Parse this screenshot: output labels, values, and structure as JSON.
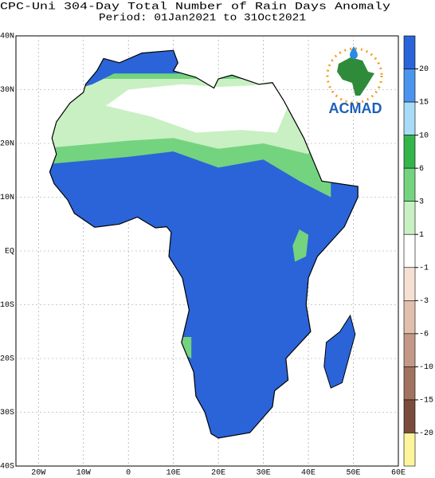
{
  "title": {
    "line1": "CPC-Uni 304-Day Total Number of Rain Days Anomaly",
    "line2": "Period: 01Jan2021 to 31Oct2021"
  },
  "x_axis": {
    "labels": [
      "20W",
      "10W",
      "0",
      "10E",
      "20E",
      "30E",
      "40E",
      "50E",
      "60E"
    ]
  },
  "y_axis": {
    "labels": [
      "40N",
      "30N",
      "20N",
      "10N",
      "EQ",
      "10S",
      "20S",
      "30S",
      "40S"
    ]
  },
  "colorbar": {
    "labels": [
      "20",
      "15",
      "10",
      "6",
      "3",
      "1",
      "-1",
      "-3",
      "-6",
      "-10",
      "-15",
      "-20"
    ],
    "colors": [
      "#2b64d8",
      "#4b94ee",
      "#a8dcf6",
      "#33b54a",
      "#74d37f",
      "#c8f0c2",
      "#ffffff",
      "#f6e0d4",
      "#e0bfad",
      "#c49886",
      "#a27260",
      "#7b4c3b",
      "#fdf59c"
    ]
  },
  "logo": {
    "text": "ACMAD"
  }
}
